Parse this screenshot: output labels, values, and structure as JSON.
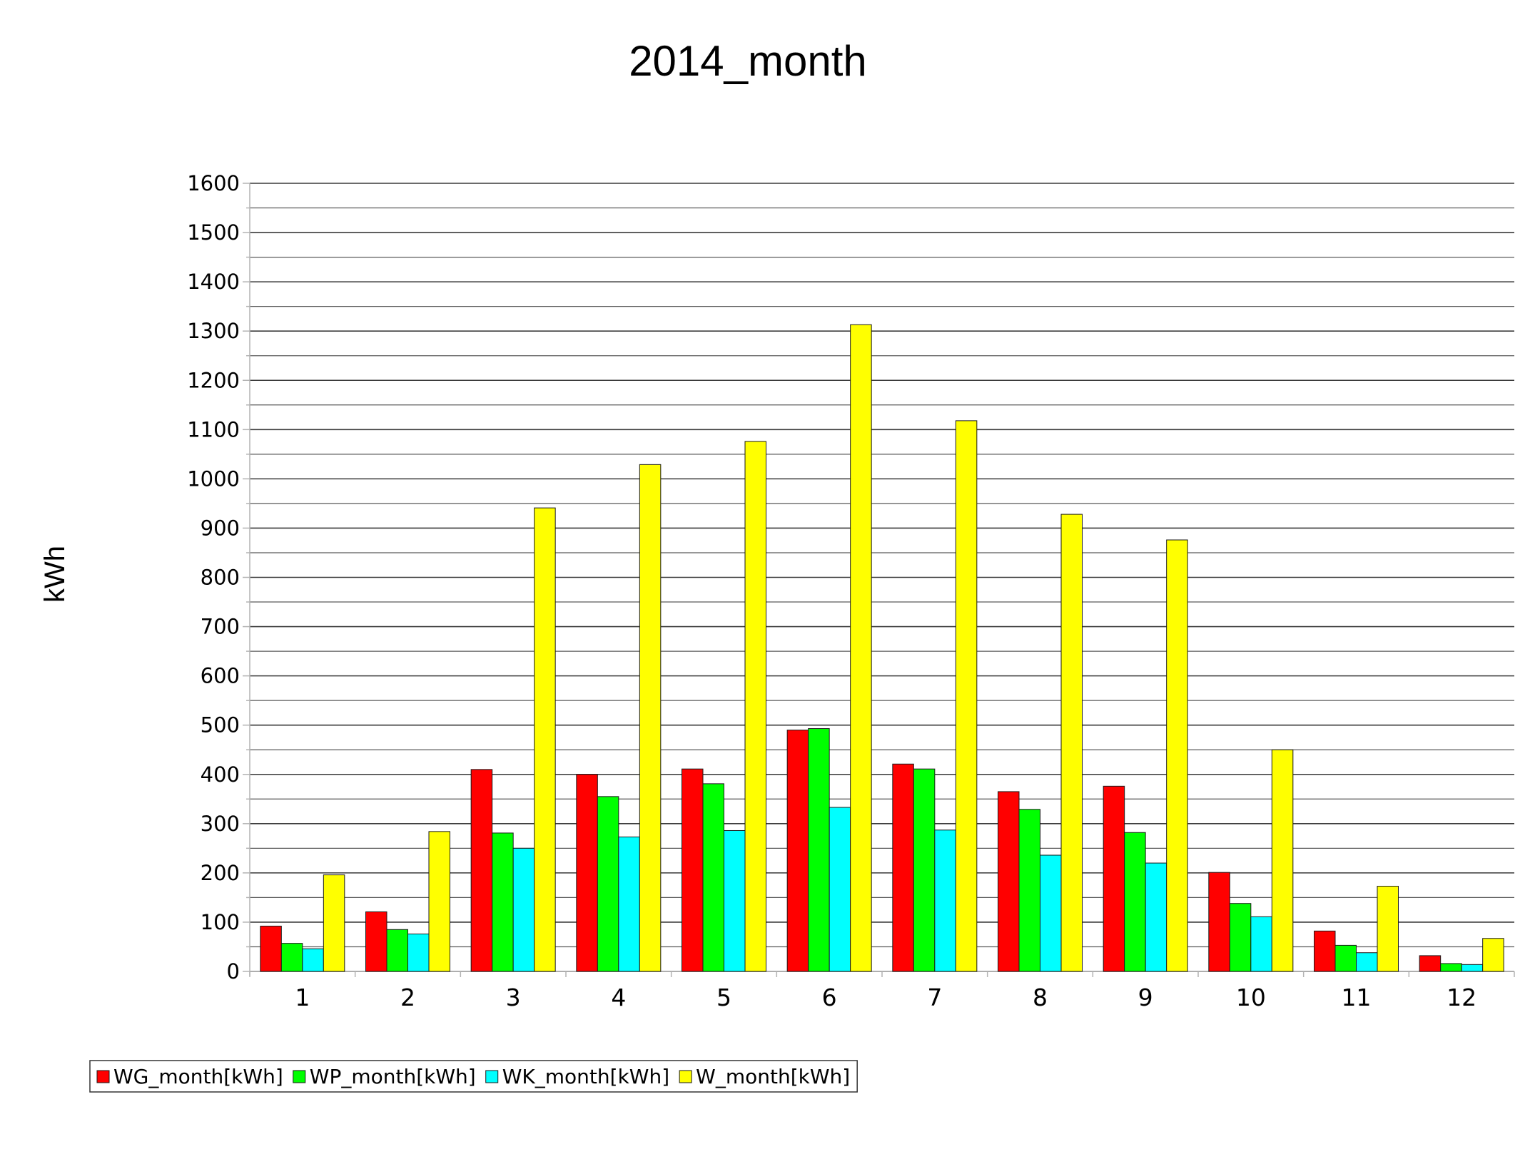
{
  "chart_data": {
    "type": "bar",
    "title": "2014_month",
    "xlabel": "",
    "ylabel": "kWh",
    "ylim": [
      0,
      1600
    ],
    "yticks": [
      "0",
      "100",
      "200",
      "300",
      "400",
      "500",
      "600",
      "700",
      "800",
      "900",
      "1000",
      "1100",
      "1200",
      "1300",
      "1400",
      "1500",
      "1600"
    ],
    "grid": true,
    "legend_position": "bottom-left",
    "categories": [
      "1",
      "2",
      "3",
      "4",
      "5",
      "6",
      "7",
      "8",
      "9",
      "10",
      "11",
      "12"
    ],
    "series": [
      {
        "name": "WG_month[kWh]",
        "color": "#ff0000",
        "values": [
          92,
          121,
          410,
          400,
          411,
          490,
          421,
          365,
          376,
          201,
          82,
          32
        ]
      },
      {
        "name": "WP_month[kWh]",
        "color": "#00ff00",
        "values": [
          57,
          85,
          281,
          355,
          381,
          493,
          411,
          329,
          282,
          138,
          53,
          16
        ]
      },
      {
        "name": "WK_month[kWh]",
        "color": "#00ffff",
        "values": [
          46,
          76,
          250,
          273,
          286,
          333,
          287,
          236,
          220,
          111,
          38,
          14
        ]
      },
      {
        "name": "W_month[kWh]",
        "color": "#ffff00",
        "values": [
          196,
          284,
          941,
          1029,
          1076,
          1313,
          1118,
          928,
          876,
          450,
          173,
          67
        ]
      }
    ]
  }
}
